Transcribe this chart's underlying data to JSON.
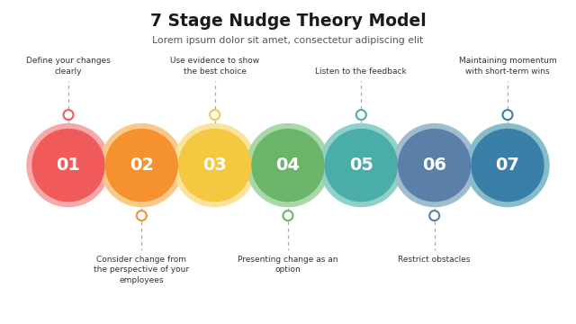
{
  "title": "7 Stage Nudge Theory Model",
  "subtitle": "Lorem ipsum dolor sit amet, consectetur adipiscing elit",
  "stages": [
    {
      "num": "01",
      "color": "#F05A5A",
      "light_color": "#F7A8A8"
    },
    {
      "num": "02",
      "color": "#F5922F",
      "light_color": "#FAC98A"
    },
    {
      "num": "03",
      "color": "#F5C842",
      "light_color": "#FAE49A"
    },
    {
      "num": "04",
      "color": "#6BB56B",
      "light_color": "#A8D8A8"
    },
    {
      "num": "05",
      "color": "#4AADA8",
      "light_color": "#8FD0CC"
    },
    {
      "num": "06",
      "color": "#5A7FA8",
      "light_color": "#A0BDD0"
    },
    {
      "num": "07",
      "color": "#3A7FA8",
      "light_color": "#88BBCC"
    }
  ],
  "top_labels": [
    {
      "idx": 0,
      "text": "Define your changes\nclearly"
    },
    {
      "idx": 2,
      "text": "Use evidence to show\nthe best choice"
    },
    {
      "idx": 4,
      "text": "Listen to the feedback"
    },
    {
      "idx": 6,
      "text": "Maintaining momentum\nwith short-term wins"
    }
  ],
  "bottom_labels": [
    {
      "idx": 1,
      "text": "Consider change from\nthe perspective of your\nemployees"
    },
    {
      "idx": 3,
      "text": "Presenting change as an\noption"
    },
    {
      "idx": 5,
      "text": "Restrict obstacles"
    }
  ],
  "bg_color": "#FFFFFF",
  "n_stages": 7,
  "fig_width": 6.4,
  "fig_height": 3.6,
  "dpi": 100
}
